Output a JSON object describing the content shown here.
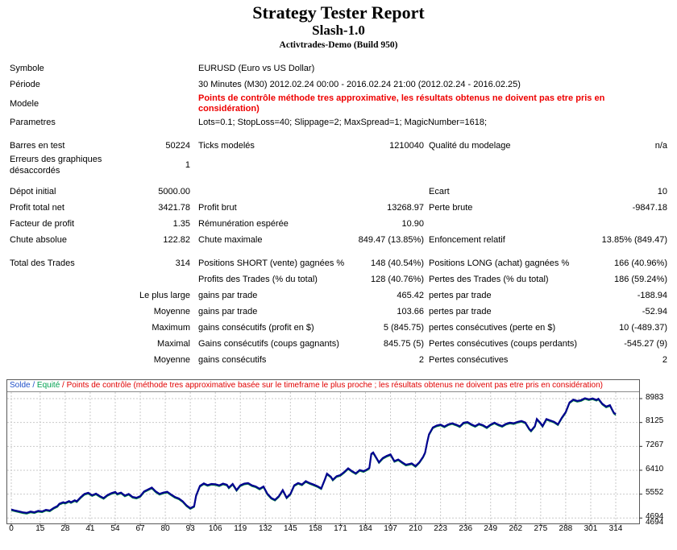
{
  "header": {
    "title": "Strategy Tester Report",
    "ea_name": "Slash-1.0",
    "account": "Activtrades-Demo (Build 950)"
  },
  "table": {
    "rows": [
      {
        "c1": "Symbole",
        "c2": "",
        "span": "EURUSD (Euro vs US Dollar)"
      },
      {
        "c1": "Période",
        "c2": "",
        "span": "30 Minutes (M30) 2012.02.24 00:00 - 2016.02.24 21:00 (2012.02.24 - 2016.02.25)"
      },
      {
        "c1": "Modele",
        "c2": "",
        "span": "Points de contrôle méthode tres approximative, les résultats obtenus ne doivent pas etre pris en\nconsidération)",
        "red": true
      },
      {
        "c1": "Parametres",
        "c2": "",
        "span": "Lots=0.1; StopLoss=40; Slippage=2; MaxSpread=1; MagicNumber=1618;"
      },
      {
        "c1": "Barres en test",
        "c2": "50224",
        "c3": "Ticks modelés",
        "c4": "1210040",
        "c5": "Qualité du modelage",
        "c6": "n/a",
        "gap": true
      },
      {
        "c1": "Erreurs des graphiques\ndésaccordés",
        "c2": "1",
        "c3": "",
        "c4": "",
        "c5": "",
        "c6": ""
      },
      {
        "c1": "Dépot initial",
        "c2": "5000.00",
        "c3": "",
        "c4": "",
        "c5": "Ecart",
        "c6": "10",
        "gap": true
      },
      {
        "c1": "Profit total net",
        "c2": "3421.78",
        "c3": "Profit brut",
        "c4": "13268.97",
        "c5": "Perte brute",
        "c6": "-9847.18"
      },
      {
        "c1": "Facteur de profit",
        "c2": "1.35",
        "c3": "Rémunération espérée",
        "c4": "10.90",
        "c5": "",
        "c6": ""
      },
      {
        "c1": "Chute absolue",
        "c2": "122.82",
        "c3": "Chute maximale",
        "c4": "849.47 (13.85%)",
        "c5": "Enfoncement relatif",
        "c6": "13.85% (849.47)"
      },
      {
        "c1": "Total des Trades",
        "c2": "314",
        "c3": "Positions SHORT (vente) gagnées %",
        "c4": "148 (40.54%)",
        "c5": "Positions LONG (achat) gagnées %",
        "c6": "166 (40.96%)",
        "gap": true
      },
      {
        "c1": "",
        "c2": "",
        "c3": "Profits des Trades (% du total)",
        "c4": "128 (40.76%)",
        "c5": "Pertes des Trades (% du total)",
        "c6": "186 (59.24%)"
      },
      {
        "c1": "",
        "c2": "Le plus large",
        "c3": "gains par trade",
        "c4": "465.42",
        "c5": "pertes par trade",
        "c6": "-188.94"
      },
      {
        "c1": "",
        "c2": "Moyenne",
        "c3": "gains par trade",
        "c4": "103.66",
        "c5": "pertes par trade",
        "c6": "-52.94"
      },
      {
        "c1": "",
        "c2": "Maximum",
        "c3": "gains consécutifs (profit en $)",
        "c4": "5 (845.75)",
        "c5": "pertes consécutives (perte en $)",
        "c6": "10 (-489.37)"
      },
      {
        "c1": "",
        "c2": "Maximal",
        "c3": "Gains consécutifs (coups gagnants)",
        "c4": "845.75 (5)",
        "c5": "Pertes consécutives (coups perdants)",
        "c6": "-545.27 (9)"
      },
      {
        "c1": "",
        "c2": "Moyenne",
        "c3": "gains consécutifs",
        "c4": "2",
        "c5": "Pertes consécutives",
        "c6": "2"
      }
    ]
  },
  "chart": {
    "legend": {
      "solde": "Solde",
      "sep1": " / ",
      "equite": "Equité",
      "sep2": " / ",
      "warning": "Points de contrôle (méthode tres approximative basée sur le timeframe le plus proche ; les résultats obtenus ne doivent pas etre pris en considération)"
    },
    "corner_label": "4694",
    "colors": {
      "solde_line": "#000090",
      "equite_line": "#008040",
      "grid": "#c9c9c9",
      "border": "#5a5a5a",
      "legend_solde": "#2050c8",
      "legend_equite": "#00a050",
      "legend_warning": "#e00000"
    }
  },
  "chart_data": {
    "type": "line",
    "legend_entries": [
      "Solde",
      "Equité"
    ],
    "legend_position": "top",
    "grid": true,
    "xlim": [
      0,
      314
    ],
    "ylim": [
      4694,
      8983
    ],
    "x_ticks": [
      0,
      15,
      28,
      41,
      54,
      67,
      80,
      93,
      106,
      119,
      132,
      145,
      158,
      171,
      184,
      197,
      210,
      223,
      236,
      249,
      262,
      275,
      288,
      301,
      314
    ],
    "y_ticks": [
      8983,
      8125,
      7267,
      6410,
      5552,
      4694
    ],
    "series": [
      {
        "name": "Solde",
        "points": [
          [
            0,
            5000
          ],
          [
            2,
            4962
          ],
          [
            4,
            4930
          ],
          [
            6,
            4898
          ],
          [
            8,
            4880
          ],
          [
            10,
            4925
          ],
          [
            12,
            4900
          ],
          [
            14,
            4952
          ],
          [
            16,
            4930
          ],
          [
            18,
            4990
          ],
          [
            20,
            4962
          ],
          [
            22,
            5055
          ],
          [
            24,
            5125
          ],
          [
            25,
            5205
          ],
          [
            27,
            5262
          ],
          [
            28,
            5238
          ],
          [
            30,
            5302
          ],
          [
            31,
            5262
          ],
          [
            33,
            5330
          ],
          [
            34,
            5292
          ],
          [
            36,
            5438
          ],
          [
            38,
            5558
          ],
          [
            40,
            5598
          ],
          [
            42,
            5512
          ],
          [
            44,
            5570
          ],
          [
            46,
            5482
          ],
          [
            48,
            5412
          ],
          [
            50,
            5522
          ],
          [
            52,
            5588
          ],
          [
            54,
            5632
          ],
          [
            55,
            5562
          ],
          [
            57,
            5608
          ],
          [
            59,
            5502
          ],
          [
            61,
            5558
          ],
          [
            63,
            5452
          ],
          [
            65,
            5422
          ],
          [
            67,
            5478
          ],
          [
            69,
            5648
          ],
          [
            71,
            5718
          ],
          [
            73,
            5788
          ],
          [
            75,
            5652
          ],
          [
            77,
            5562
          ],
          [
            79,
            5608
          ],
          [
            81,
            5638
          ],
          [
            83,
            5542
          ],
          [
            85,
            5452
          ],
          [
            87,
            5398
          ],
          [
            89,
            5298
          ],
          [
            91,
            5148
          ],
          [
            93,
            5048
          ],
          [
            95,
            5118
          ],
          [
            96,
            5498
          ],
          [
            98,
            5848
          ],
          [
            100,
            5938
          ],
          [
            102,
            5878
          ],
          [
            104,
            5918
          ],
          [
            106,
            5908
          ],
          [
            108,
            5868
          ],
          [
            110,
            5928
          ],
          [
            112,
            5888
          ],
          [
            113,
            5788
          ],
          [
            115,
            5918
          ],
          [
            117,
            5698
          ],
          [
            119,
            5868
          ],
          [
            121,
            5928
          ],
          [
            123,
            5948
          ],
          [
            125,
            5868
          ],
          [
            127,
            5828
          ],
          [
            129,
            5748
          ],
          [
            131,
            5828
          ],
          [
            133,
            5568
          ],
          [
            135,
            5418
          ],
          [
            137,
            5348
          ],
          [
            139,
            5478
          ],
          [
            141,
            5698
          ],
          [
            143,
            5428
          ],
          [
            145,
            5558
          ],
          [
            147,
            5868
          ],
          [
            149,
            5948
          ],
          [
            151,
            5898
          ],
          [
            153,
            6018
          ],
          [
            155,
            5948
          ],
          [
            157,
            5898
          ],
          [
            159,
            5838
          ],
          [
            161,
            5758
          ],
          [
            163,
            6098
          ],
          [
            164,
            6288
          ],
          [
            166,
            6178
          ],
          [
            167,
            6068
          ],
          [
            169,
            6198
          ],
          [
            171,
            6238
          ],
          [
            173,
            6348
          ],
          [
            175,
            6478
          ],
          [
            177,
            6378
          ],
          [
            179,
            6298
          ],
          [
            181,
            6418
          ],
          [
            183,
            6378
          ],
          [
            185,
            6448
          ],
          [
            186,
            6498
          ],
          [
            187,
            6998
          ],
          [
            188,
            7048
          ],
          [
            190,
            6818
          ],
          [
            191,
            6698
          ],
          [
            193,
            6848
          ],
          [
            195,
            6928
          ],
          [
            197,
            6978
          ],
          [
            199,
            6738
          ],
          [
            201,
            6798
          ],
          [
            203,
            6698
          ],
          [
            205,
            6608
          ],
          [
            207,
            6638
          ],
          [
            208,
            6658
          ],
          [
            210,
            6558
          ],
          [
            212,
            6698
          ],
          [
            214,
            6898
          ],
          [
            215,
            7048
          ],
          [
            216,
            7398
          ],
          [
            217,
            7698
          ],
          [
            219,
            7948
          ],
          [
            221,
            8018
          ],
          [
            223,
            8048
          ],
          [
            225,
            7978
          ],
          [
            227,
            8058
          ],
          [
            229,
            8098
          ],
          [
            231,
            8048
          ],
          [
            233,
            7988
          ],
          [
            235,
            8118
          ],
          [
            237,
            8138
          ],
          [
            239,
            8058
          ],
          [
            241,
            7998
          ],
          [
            243,
            8078
          ],
          [
            245,
            8028
          ],
          [
            247,
            7948
          ],
          [
            249,
            8048
          ],
          [
            251,
            8118
          ],
          [
            253,
            8048
          ],
          [
            255,
            7998
          ],
          [
            257,
            8078
          ],
          [
            259,
            8118
          ],
          [
            261,
            8098
          ],
          [
            263,
            8148
          ],
          [
            265,
            8178
          ],
          [
            267,
            8128
          ],
          [
            269,
            7898
          ],
          [
            270,
            7828
          ],
          [
            272,
            7998
          ],
          [
            273,
            8248
          ],
          [
            275,
            8098
          ],
          [
            276,
            7998
          ],
          [
            278,
            8248
          ],
          [
            280,
            8198
          ],
          [
            282,
            8148
          ],
          [
            284,
            8058
          ],
          [
            286,
            8298
          ],
          [
            288,
            8498
          ],
          [
            290,
            8848
          ],
          [
            292,
            8948
          ],
          [
            294,
            8898
          ],
          [
            296,
            8928
          ],
          [
            298,
            8998
          ],
          [
            300,
            8958
          ],
          [
            302,
            8988
          ],
          [
            304,
            8938
          ],
          [
            305,
            8978
          ],
          [
            307,
            8798
          ],
          [
            309,
            8698
          ],
          [
            311,
            8748
          ],
          [
            312,
            8608
          ],
          [
            313,
            8478
          ],
          [
            314,
            8422
          ]
        ]
      },
      {
        "name": "Equité",
        "follows": "Solde"
      }
    ]
  }
}
